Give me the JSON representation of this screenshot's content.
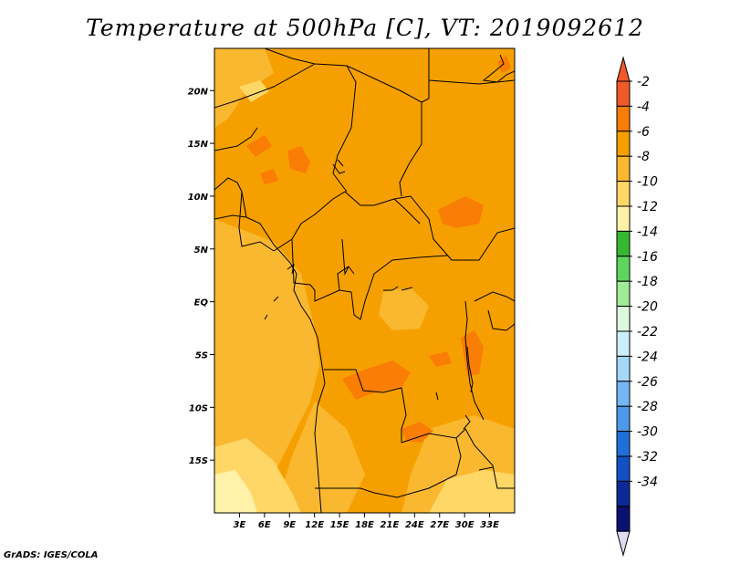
{
  "title": "Temperature at 500hPa [C], VT: 2019092612",
  "credit": "GrADS: IGES/COLA",
  "chart_data": {
    "type": "heatmap",
    "variable": "Temperature at 500hPa",
    "units": "C",
    "valid_time": "2019092612",
    "x_range": [
      0,
      36
    ],
    "y_range": [
      -20,
      24
    ],
    "x_ticks": [
      {
        "value": 3,
        "label": "3E"
      },
      {
        "value": 6,
        "label": "6E"
      },
      {
        "value": 9,
        "label": "9E"
      },
      {
        "value": 12,
        "label": "12E"
      },
      {
        "value": 15,
        "label": "15E"
      },
      {
        "value": 18,
        "label": "18E"
      },
      {
        "value": 21,
        "label": "21E"
      },
      {
        "value": 24,
        "label": "24E"
      },
      {
        "value": 27,
        "label": "27E"
      },
      {
        "value": 30,
        "label": "30E"
      },
      {
        "value": 33,
        "label": "33E"
      }
    ],
    "y_ticks": [
      {
        "value": 20,
        "label": "20N"
      },
      {
        "value": 15,
        "label": "15N"
      },
      {
        "value": 10,
        "label": "10N"
      },
      {
        "value": 5,
        "label": "5N"
      },
      {
        "value": 0,
        "label": "EQ"
      },
      {
        "value": -5,
        "label": "5S"
      },
      {
        "value": -10,
        "label": "10S"
      },
      {
        "value": -15,
        "label": "15S"
      }
    ],
    "colorbar": {
      "labels": [
        "-2",
        "-4",
        "-6",
        "-8",
        "-10",
        "-12",
        "-14",
        "-16",
        "-18",
        "-20",
        "-22",
        "-24",
        "-26",
        "-28",
        "-30",
        "-32",
        "-34"
      ],
      "colors": [
        "#f05a28",
        "#fa7d05",
        "#f5a000",
        "#f9b830",
        "#ffd766",
        "#fff2a8",
        "#37b832",
        "#5ed65e",
        "#a0eb95",
        "#dcf7db",
        "#cbeefd",
        "#a4d8f6",
        "#76b6f3",
        "#4e98ea",
        "#1f6fd8",
        "#1250c4",
        "#0b2a96",
        "#0b1170"
      ],
      "top_arrow_color": "#f05a28",
      "bottom_arrow_color": "#dcdcf5"
    },
    "field_levels_present": [
      "-2",
      "-4",
      "-6",
      "-8",
      "-10"
    ],
    "dominant_range": "-4 to -6"
  }
}
